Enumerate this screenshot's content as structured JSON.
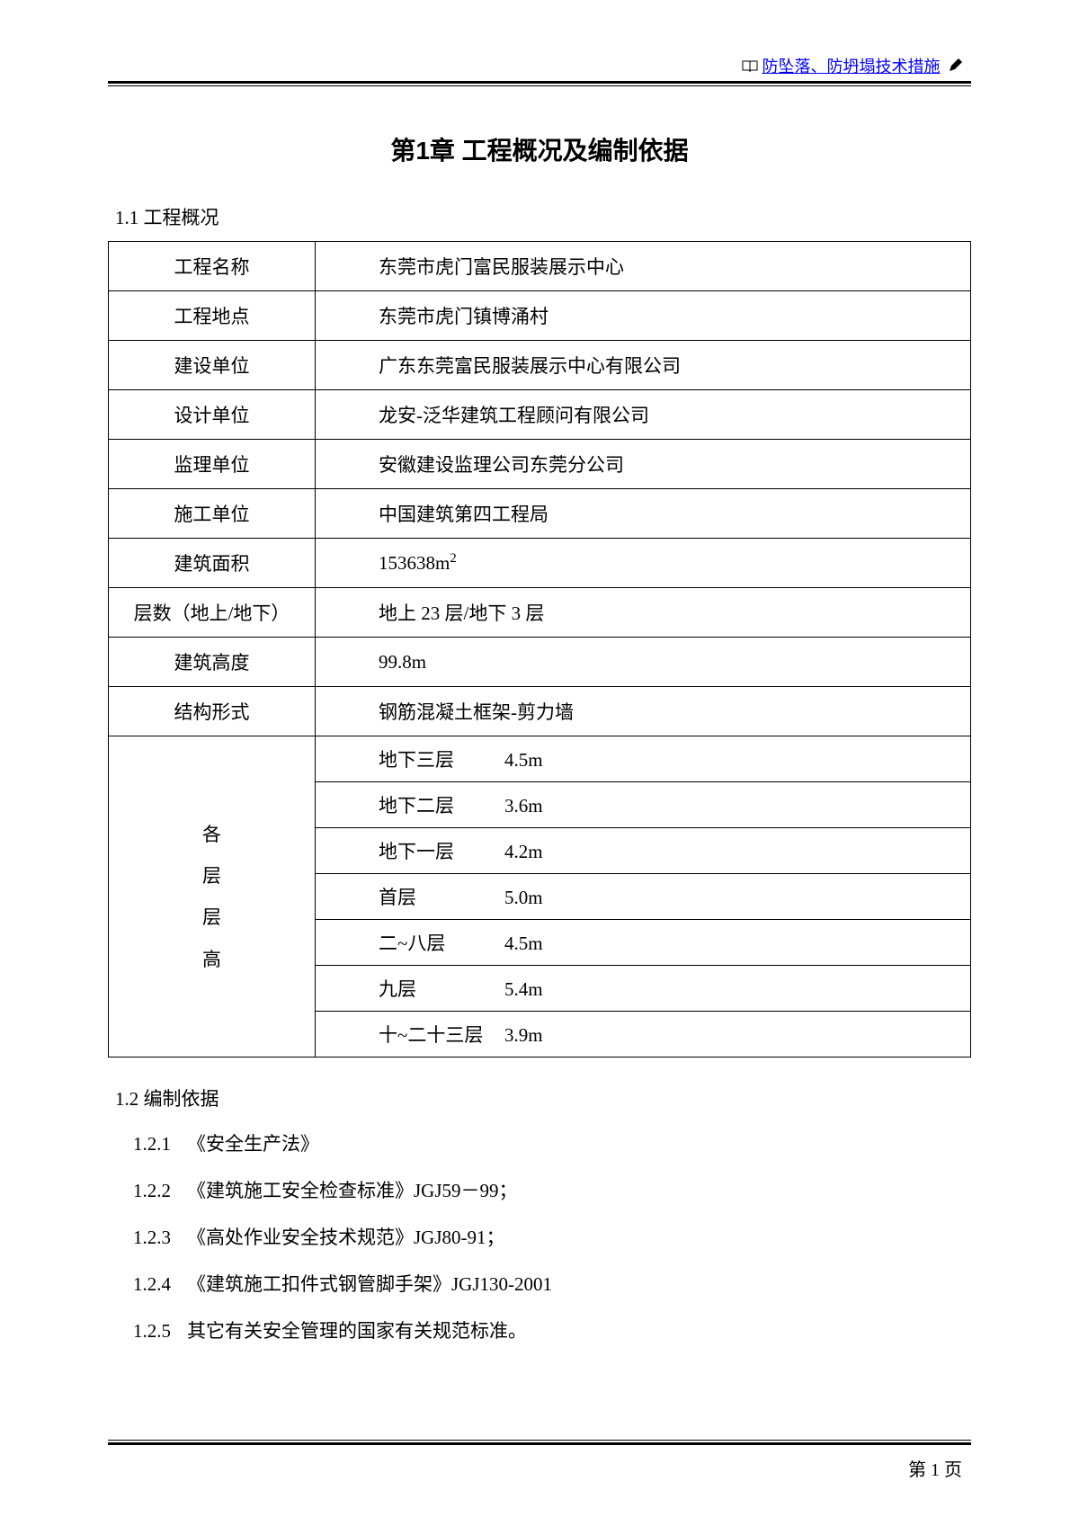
{
  "header": {
    "link_text": "防坠落、防坍塌技术措施"
  },
  "chapter": {
    "title": "第1章  工程概况及编制依据"
  },
  "section1": {
    "heading": "1.1    工程概况",
    "rows": [
      {
        "label": "工程名称",
        "value": "东莞市虎门富民服装展示中心"
      },
      {
        "label": "工程地点",
        "value": "东莞市虎门镇博涌村"
      },
      {
        "label": "建设单位",
        "value": "广东东莞富民服装展示中心有限公司"
      },
      {
        "label": "设计单位",
        "value": "龙安-泛华建筑工程顾问有限公司"
      },
      {
        "label": "监理单位",
        "value": "安徽建设监理公司东莞分公司"
      },
      {
        "label": "施工单位",
        "value": "中国建筑第四工程局"
      },
      {
        "label": "建筑面积",
        "value": "153638m²"
      },
      {
        "label": "层数（地上/地下）",
        "value": "地上 23 层/地下 3 层"
      },
      {
        "label": "建筑高度",
        "value": "99.8m"
      },
      {
        "label": "结构形式",
        "value": "钢筋混凝土框架-剪力墙"
      }
    ],
    "floor_label_lines": [
      "各",
      "层",
      "层",
      "高"
    ],
    "floors": [
      {
        "name": "地下三层",
        "height": "4.5m"
      },
      {
        "name": "地下二层",
        "height": "3.6m"
      },
      {
        "name": "地下一层",
        "height": "4.2m"
      },
      {
        "name": "首层",
        "height": "5.0m"
      },
      {
        "name": "二~八层",
        "height": "4.5m"
      },
      {
        "name": "九层",
        "height": "5.4m"
      },
      {
        "name": "十~二十三层",
        "height": "3.9m"
      }
    ]
  },
  "section2": {
    "heading": "1.2    编制依据",
    "items": [
      {
        "num": "1.2.1",
        "text": "《安全生产法》"
      },
      {
        "num": "1.2.2",
        "text": "《建筑施工安全检查标准》JGJ59－99；"
      },
      {
        "num": "1.2.3",
        "text": "《高处作业安全技术规范》JGJ80-91；"
      },
      {
        "num": "1.2.4",
        "text": "《建筑施工扣件式钢管脚手架》JGJ130-2001"
      },
      {
        "num": "1.2.5",
        "text": "其它有关安全管理的国家有关规范标准。"
      }
    ]
  },
  "footer": {
    "page": "第 1 页"
  }
}
